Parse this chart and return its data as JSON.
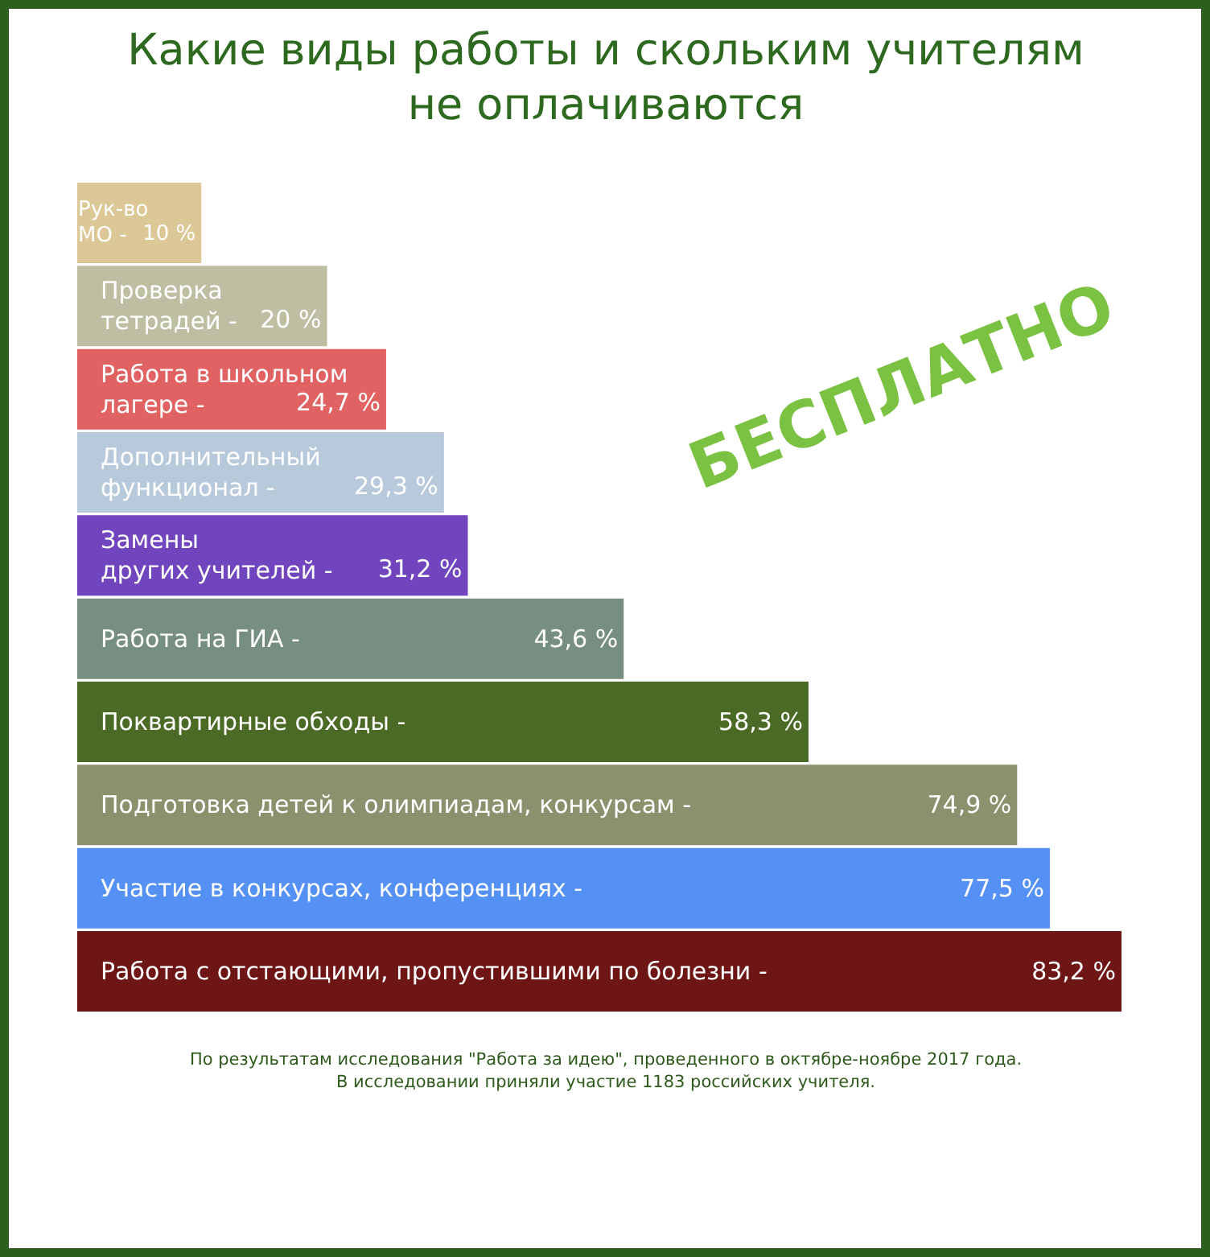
{
  "chart_data": {
    "type": "bar",
    "orientation": "horizontal",
    "title": "Какие виды работы и скольким учителям\nне оплачиваются",
    "categories": [
      "Рук-во\nМО -",
      "Проверка\nтетрадей -",
      "Работа в школьном\nлагере -",
      "Дополнительный\nфункционал -",
      "Замены\nдругих учителей -",
      "Работа на ГИА -",
      "Поквартирные обходы -",
      "Подготовка детей к олимпиадам, конкурсам -",
      "Участие в конкурсах, конференциях -",
      "Работа с отстающими, пропустившими по болезни -"
    ],
    "value_labels": [
      "10 %",
      "20 %",
      "24,7 %",
      "29,3 %",
      "31,2 %",
      "43,6 %",
      "58,3 %",
      "74,9 %",
      "77,5 %",
      "83,2 %"
    ],
    "values": [
      10,
      20,
      24.7,
      29.3,
      31.2,
      43.6,
      58.3,
      74.9,
      77.5,
      83.2
    ],
    "colors": [
      "#dcc896",
      "#bdbea2",
      "#e06262",
      "#b9c9dc",
      "#7045bd",
      "#778f80",
      "#4a6a25",
      "#8d906d",
      "#5590f5",
      "#6d1615"
    ],
    "annotations": [
      "БЕСПЛАТНО",
      "По результатам исследования \"Работа за идею\", проведенного в октябре-ноябре 2017 года.\nВ исследовании приняли участие 1183 российских учителя."
    ]
  }
}
